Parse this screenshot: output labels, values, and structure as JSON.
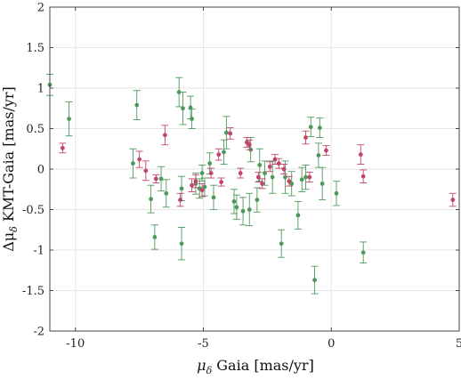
{
  "chart_data": {
    "type": "scatter",
    "xlabel_main": "μ",
    "xlabel_sub": "δ",
    "xlabel_rest": " Gaia [mas/yr]",
    "ylabel_main": "Δμ",
    "ylabel_sub": "δ",
    "ylabel_rest": " KMT-Gaia [mas/yr]",
    "xlim": [
      -11,
      5
    ],
    "ylim": [
      -2,
      2
    ],
    "xticks": [
      -10,
      -5,
      0,
      5
    ],
    "xtick_labels": [
      "-10",
      "-5",
      "0",
      "5"
    ],
    "yticks": [
      -2,
      -1.5,
      -1,
      -0.5,
      0,
      0.5,
      1,
      1.5,
      2
    ],
    "ytick_labels": [
      "-2",
      "-1.5",
      "-1",
      "-0.5",
      "0",
      "0.5",
      "1",
      "1.5",
      "2"
    ],
    "grid": true,
    "colors": {
      "green": "#4d9a5c",
      "red": "#c2456b",
      "grid": "#e6e6e6",
      "axis": "#444444"
    },
    "series": [
      {
        "color": "green",
        "points": [
          {
            "x": -11.0,
            "y": 1.04,
            "err": 0.13
          },
          {
            "x": -10.25,
            "y": 0.62,
            "err": 0.21
          },
          {
            "x": -7.75,
            "y": 0.07,
            "err": 0.18
          },
          {
            "x": -7.6,
            "y": 0.79,
            "err": 0.18
          },
          {
            "x": -7.05,
            "y": -0.37,
            "err": 0.17
          },
          {
            "x": -6.9,
            "y": -0.84,
            "err": 0.15
          },
          {
            "x": -6.65,
            "y": -0.12,
            "err": 0.15
          },
          {
            "x": -6.45,
            "y": -0.3,
            "err": 0.17
          },
          {
            "x": -5.95,
            "y": 0.95,
            "err": 0.18
          },
          {
            "x": -5.85,
            "y": -0.92,
            "err": 0.2
          },
          {
            "x": -5.85,
            "y": -0.24,
            "err": 0.15
          },
          {
            "x": -5.8,
            "y": 0.75,
            "err": 0.2
          },
          {
            "x": -5.5,
            "y": 0.76,
            "err": 0.14
          },
          {
            "x": -5.45,
            "y": 0.62,
            "err": 0.12
          },
          {
            "x": -5.3,
            "y": -0.18,
            "err": 0.13
          },
          {
            "x": -5.15,
            "y": -0.24,
            "err": 0.12
          },
          {
            "x": -5.05,
            "y": -0.05,
            "err": 0.1
          },
          {
            "x": -4.95,
            "y": -0.22,
            "err": 0.11
          },
          {
            "x": -4.75,
            "y": 0.07,
            "err": 0.13
          },
          {
            "x": -4.6,
            "y": -0.35,
            "err": 0.15
          },
          {
            "x": -4.2,
            "y": 0.21,
            "err": 0.15
          },
          {
            "x": -4.1,
            "y": 0.45,
            "err": 0.2
          },
          {
            "x": -3.8,
            "y": -0.4,
            "err": 0.15
          },
          {
            "x": -3.7,
            "y": -0.47,
            "err": 0.15
          },
          {
            "x": -3.45,
            "y": -0.52,
            "err": 0.17
          },
          {
            "x": -3.2,
            "y": -0.5,
            "err": 0.2
          },
          {
            "x": -3.15,
            "y": 0.24,
            "err": 0.15
          },
          {
            "x": -2.9,
            "y": -0.38,
            "err": 0.15
          },
          {
            "x": -2.8,
            "y": 0.05,
            "err": 0.2
          },
          {
            "x": -2.6,
            "y": -0.05,
            "err": 0.15
          },
          {
            "x": -2.3,
            "y": -0.1,
            "err": 0.2
          },
          {
            "x": -1.95,
            "y": -0.92,
            "err": 0.17
          },
          {
            "x": -1.8,
            "y": -0.1,
            "err": 0.2
          },
          {
            "x": -1.55,
            "y": -0.18,
            "err": 0.15
          },
          {
            "x": -1.3,
            "y": -0.57,
            "err": 0.17
          },
          {
            "x": -1.15,
            "y": -0.13,
            "err": 0.15
          },
          {
            "x": -1.0,
            "y": -0.1,
            "err": 0.15
          },
          {
            "x": -0.8,
            "y": 0.52,
            "err": 0.12
          },
          {
            "x": -0.65,
            "y": -1.37,
            "err": 0.17
          },
          {
            "x": -0.5,
            "y": 0.17,
            "err": 0.15
          },
          {
            "x": -0.45,
            "y": 0.51,
            "err": 0.12
          },
          {
            "x": -0.35,
            "y": -0.18,
            "err": 0.2
          },
          {
            "x": 0.2,
            "y": -0.3,
            "err": 0.15
          },
          {
            "x": 1.25,
            "y": -1.03,
            "err": 0.13
          }
        ]
      },
      {
        "color": "red",
        "points": [
          {
            "x": -10.5,
            "y": 0.26,
            "err": 0.06
          },
          {
            "x": -7.5,
            "y": 0.12,
            "err": 0.1
          },
          {
            "x": -7.25,
            "y": -0.02,
            "err": 0.12
          },
          {
            "x": -6.85,
            "y": -0.12,
            "err": 0.05
          },
          {
            "x": -6.5,
            "y": 0.42,
            "err": 0.12
          },
          {
            "x": -5.9,
            "y": -0.38,
            "err": 0.08
          },
          {
            "x": -5.45,
            "y": -0.2,
            "err": 0.08
          },
          {
            "x": -5.3,
            "y": -0.15,
            "err": 0.08
          },
          {
            "x": -5.05,
            "y": -0.26,
            "err": 0.08
          },
          {
            "x": -4.7,
            "y": -0.05,
            "err": 0.06
          },
          {
            "x": -4.4,
            "y": 0.18,
            "err": 0.07
          },
          {
            "x": -4.3,
            "y": -0.16,
            "err": 0.05
          },
          {
            "x": -3.95,
            "y": 0.44,
            "err": 0.07
          },
          {
            "x": -3.55,
            "y": -0.05,
            "err": 0.06
          },
          {
            "x": -3.3,
            "y": 0.33,
            "err": 0.06
          },
          {
            "x": -3.2,
            "y": 0.3,
            "err": 0.06
          },
          {
            "x": -2.85,
            "y": -0.1,
            "err": 0.06
          },
          {
            "x": -2.7,
            "y": -0.18,
            "err": 0.06
          },
          {
            "x": -2.4,
            "y": 0.03,
            "err": 0.06
          },
          {
            "x": -2.2,
            "y": 0.12,
            "err": 0.06
          },
          {
            "x": -2.05,
            "y": 0.07,
            "err": 0.06
          },
          {
            "x": -1.85,
            "y": 0.0,
            "err": 0.06
          },
          {
            "x": -1.65,
            "y": -0.15,
            "err": 0.06
          },
          {
            "x": -1.0,
            "y": 0.39,
            "err": 0.08
          },
          {
            "x": -0.85,
            "y": -0.1,
            "err": 0.06
          },
          {
            "x": -0.2,
            "y": 0.23,
            "err": 0.06
          },
          {
            "x": 1.15,
            "y": 0.18,
            "err": 0.12
          },
          {
            "x": 1.25,
            "y": -0.09,
            "err": 0.08
          },
          {
            "x": 4.75,
            "y": -0.38,
            "err": 0.08
          }
        ]
      }
    ]
  }
}
